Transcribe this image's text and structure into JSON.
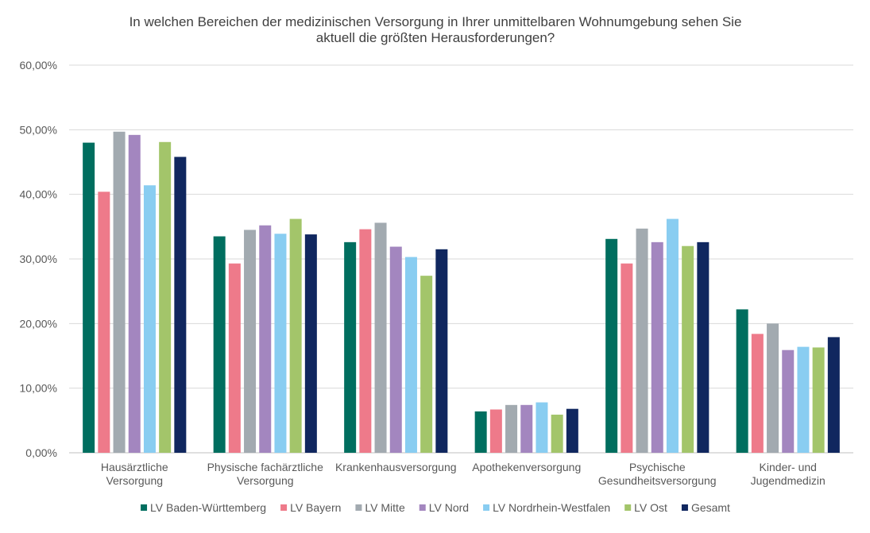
{
  "chart_data": {
    "type": "bar",
    "title": [
      "In welchen Bereichen der medizinischen Versorgung in Ihrer unmittelbaren Wohnumgebung sehen Sie",
      "aktuell die größten Herausforderungen?"
    ],
    "categories": [
      [
        "Hausärztliche",
        "Versorgung"
      ],
      [
        "Physische fachärztliche",
        "Versorgung"
      ],
      [
        "Krankenhausversorgung"
      ],
      [
        "Apothekenversorgung"
      ],
      [
        "Psychische",
        "Gesundheitsversorgung"
      ],
      [
        "Kinder- und",
        "Jugendmedizin"
      ]
    ],
    "yticks": [
      "0,00%",
      "10,00%",
      "20,00%",
      "30,00%",
      "40,00%",
      "50,00%",
      "60,00%"
    ],
    "ylim": [
      0,
      60
    ],
    "grid": true,
    "legend_position": "bottom",
    "series": [
      {
        "name": "LV Baden-Württemberg",
        "color": "#006e5f",
        "values": [
          48.0,
          33.5,
          32.6,
          6.4,
          33.1,
          22.2
        ]
      },
      {
        "name": "LV Bayern",
        "color": "#ee7a8a",
        "values": [
          40.4,
          29.3,
          34.6,
          6.7,
          29.3,
          18.4
        ]
      },
      {
        "name": "LV Mitte",
        "color": "#a2aab0",
        "values": [
          49.7,
          34.5,
          35.6,
          7.4,
          34.7,
          20.0
        ]
      },
      {
        "name": "LV Nord",
        "color": "#a386bf",
        "values": [
          49.2,
          35.2,
          31.9,
          7.4,
          32.6,
          15.9
        ]
      },
      {
        "name": "LV Nordrhein-Westfalen",
        "color": "#89cdf1",
        "values": [
          41.4,
          33.9,
          30.3,
          7.8,
          36.2,
          16.4
        ]
      },
      {
        "name": "LV Ost",
        "color": "#a3c56a",
        "values": [
          48.1,
          36.2,
          27.4,
          5.9,
          32.0,
          16.3
        ]
      },
      {
        "name": "Gesamt",
        "color": "#10275f",
        "values": [
          45.8,
          33.8,
          31.5,
          6.8,
          32.6,
          17.9
        ]
      }
    ]
  }
}
